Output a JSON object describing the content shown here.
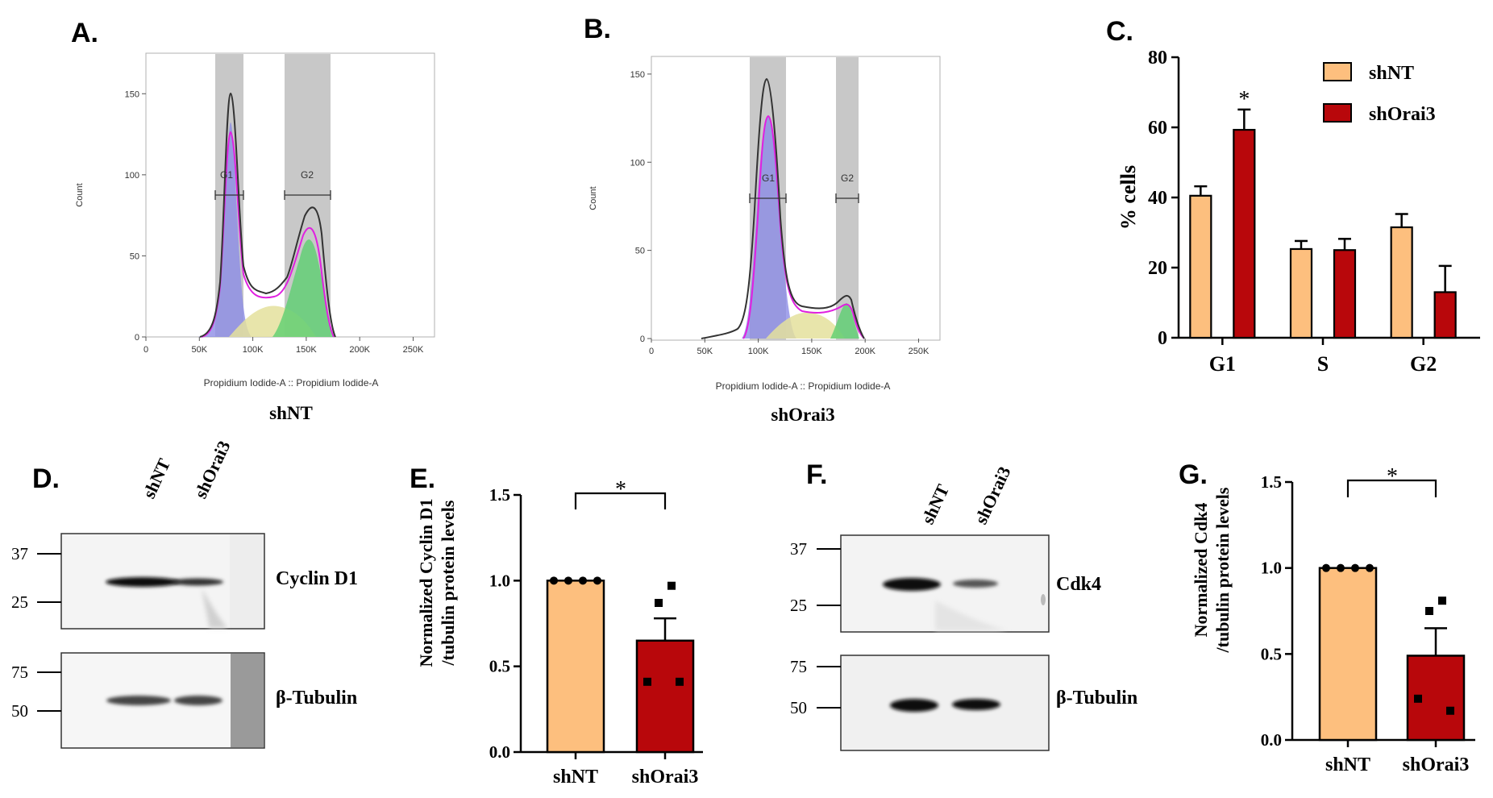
{
  "panels": {
    "A": {
      "letter": "A.",
      "xlabel": "Propidium Iodide-A :: Propidium Iodide-A",
      "ylabel": "Count",
      "caption": "shNT",
      "yticks": [
        "0",
        "50",
        "100",
        "150"
      ],
      "xticks": [
        "0",
        "50K",
        "100K",
        "150K",
        "200K",
        "250K"
      ],
      "gate1": "G1",
      "gate2": "G2"
    },
    "B": {
      "letter": "B.",
      "xlabel": "Propidium Iodide-A :: Propidium Iodide-A",
      "ylabel": "Count",
      "caption": "shOrai3",
      "yticks": [
        "0",
        "50",
        "100",
        "150"
      ],
      "xticks": [
        "0",
        "50K",
        "100K",
        "150K",
        "200K",
        "250K"
      ],
      "gate1": "G1",
      "gate2": "G2"
    },
    "C": {
      "letter": "C."
    },
    "D": {
      "letter": "D.",
      "lanes": [
        "shNT",
        "shOrai3"
      ],
      "blot1_label": "Cyclin D1",
      "blot2_label": "β-Tubulin",
      "mw1": [
        "37",
        "25"
      ],
      "mw2": [
        "75",
        "50"
      ]
    },
    "E": {
      "letter": "E.",
      "sig": "*"
    },
    "F": {
      "letter": "F.",
      "lanes": [
        "shNT",
        "shOrai3"
      ],
      "blot1_label": "Cdk4",
      "blot2_label": "β-Tubulin",
      "mw1": [
        "37",
        "25"
      ],
      "mw2": [
        "75",
        "50"
      ]
    },
    "G": {
      "letter": "G.",
      "sig": "*"
    }
  },
  "colors": {
    "shNT": "#FDBF7E",
    "shOrai3": "#B8070B",
    "gate": "#c8c8c8",
    "g1_fill": "#8c8ce6",
    "s_fill": "#e4e09c",
    "g2_fill": "#5cd070",
    "fit_line": "#e020e0"
  },
  "chart_data": [
    {
      "panel": "A",
      "type": "area",
      "title": "",
      "xlabel": "Propidium Iodide-A :: Propidium Iodide-A",
      "ylabel": "Count",
      "xlim": [
        0,
        270000
      ],
      "ylim": [
        0,
        175
      ],
      "gates": [
        {
          "name": "G1",
          "x": [
            64000,
            90000
          ]
        },
        {
          "name": "G2",
          "x": [
            128000,
            170000
          ]
        }
      ],
      "peaks": {
        "G1": {
          "x": 77000,
          "y": 165
        },
        "G2": {
          "x": 149000,
          "y": 85
        }
      }
    },
    {
      "panel": "B",
      "type": "area",
      "title": "",
      "xlabel": "Propidium Iodide-A :: Propidium Iodide-A",
      "ylabel": "Count",
      "xlim": [
        0,
        270000
      ],
      "ylim": [
        0,
        160
      ],
      "gates": [
        {
          "name": "G1",
          "x": [
            89000,
            121000
          ]
        },
        {
          "name": "G2",
          "x": [
            166000,
            186000
          ]
        }
      ],
      "peaks": {
        "G1": {
          "x": 102000,
          "y": 150
        },
        "G2": {
          "x": 174000,
          "y": 25
        }
      }
    },
    {
      "panel": "C",
      "type": "bar",
      "categories": [
        "G1",
        "S",
        "G2"
      ],
      "series": [
        {
          "name": "shNT",
          "values": [
            40.5,
            25.3,
            31.5
          ],
          "errors": [
            2.7,
            2.3,
            3.8
          ]
        },
        {
          "name": "shOrai3",
          "values": [
            59.3,
            25.0,
            13.0
          ],
          "errors": [
            5.8,
            3.2,
            7.5
          ]
        }
      ],
      "ylabel": "% cells",
      "ylim": [
        0,
        80
      ],
      "yticks": [
        "0",
        "20",
        "40",
        "60",
        "80"
      ],
      "significance": [
        {
          "category": "G1",
          "label": "*"
        }
      ],
      "legend": "top-right"
    },
    {
      "panel": "E",
      "type": "bar",
      "categories": [
        "shNT",
        "shOrai3"
      ],
      "values": [
        1.0,
        0.65
      ],
      "errors": [
        0,
        0.13
      ],
      "points": [
        [
          1.0,
          1.0,
          1.0,
          1.0
        ],
        [
          0.97,
          0.87,
          0.41,
          0.41
        ]
      ],
      "ylabel": "Normalized Cyclin D1 /tubulin protein levels",
      "ylim": [
        0,
        1.5
      ],
      "yticks": [
        "0.0",
        "0.5",
        "1.0",
        "1.5"
      ],
      "significance": "*"
    },
    {
      "panel": "G",
      "type": "bar",
      "categories": [
        "shNT",
        "shOrai3"
      ],
      "values": [
        1.0,
        0.49
      ],
      "errors": [
        0,
        0.16
      ],
      "points": [
        [
          1.0,
          1.0,
          1.0,
          1.0
        ],
        [
          0.81,
          0.75,
          0.24,
          0.17
        ]
      ],
      "ylabel": "Normalized Cdk4 /tubulin protein levels",
      "ylim": [
        0,
        1.5
      ],
      "yticks": [
        "0.0",
        "0.5",
        "1.0",
        "1.5"
      ],
      "significance": "*"
    }
  ]
}
